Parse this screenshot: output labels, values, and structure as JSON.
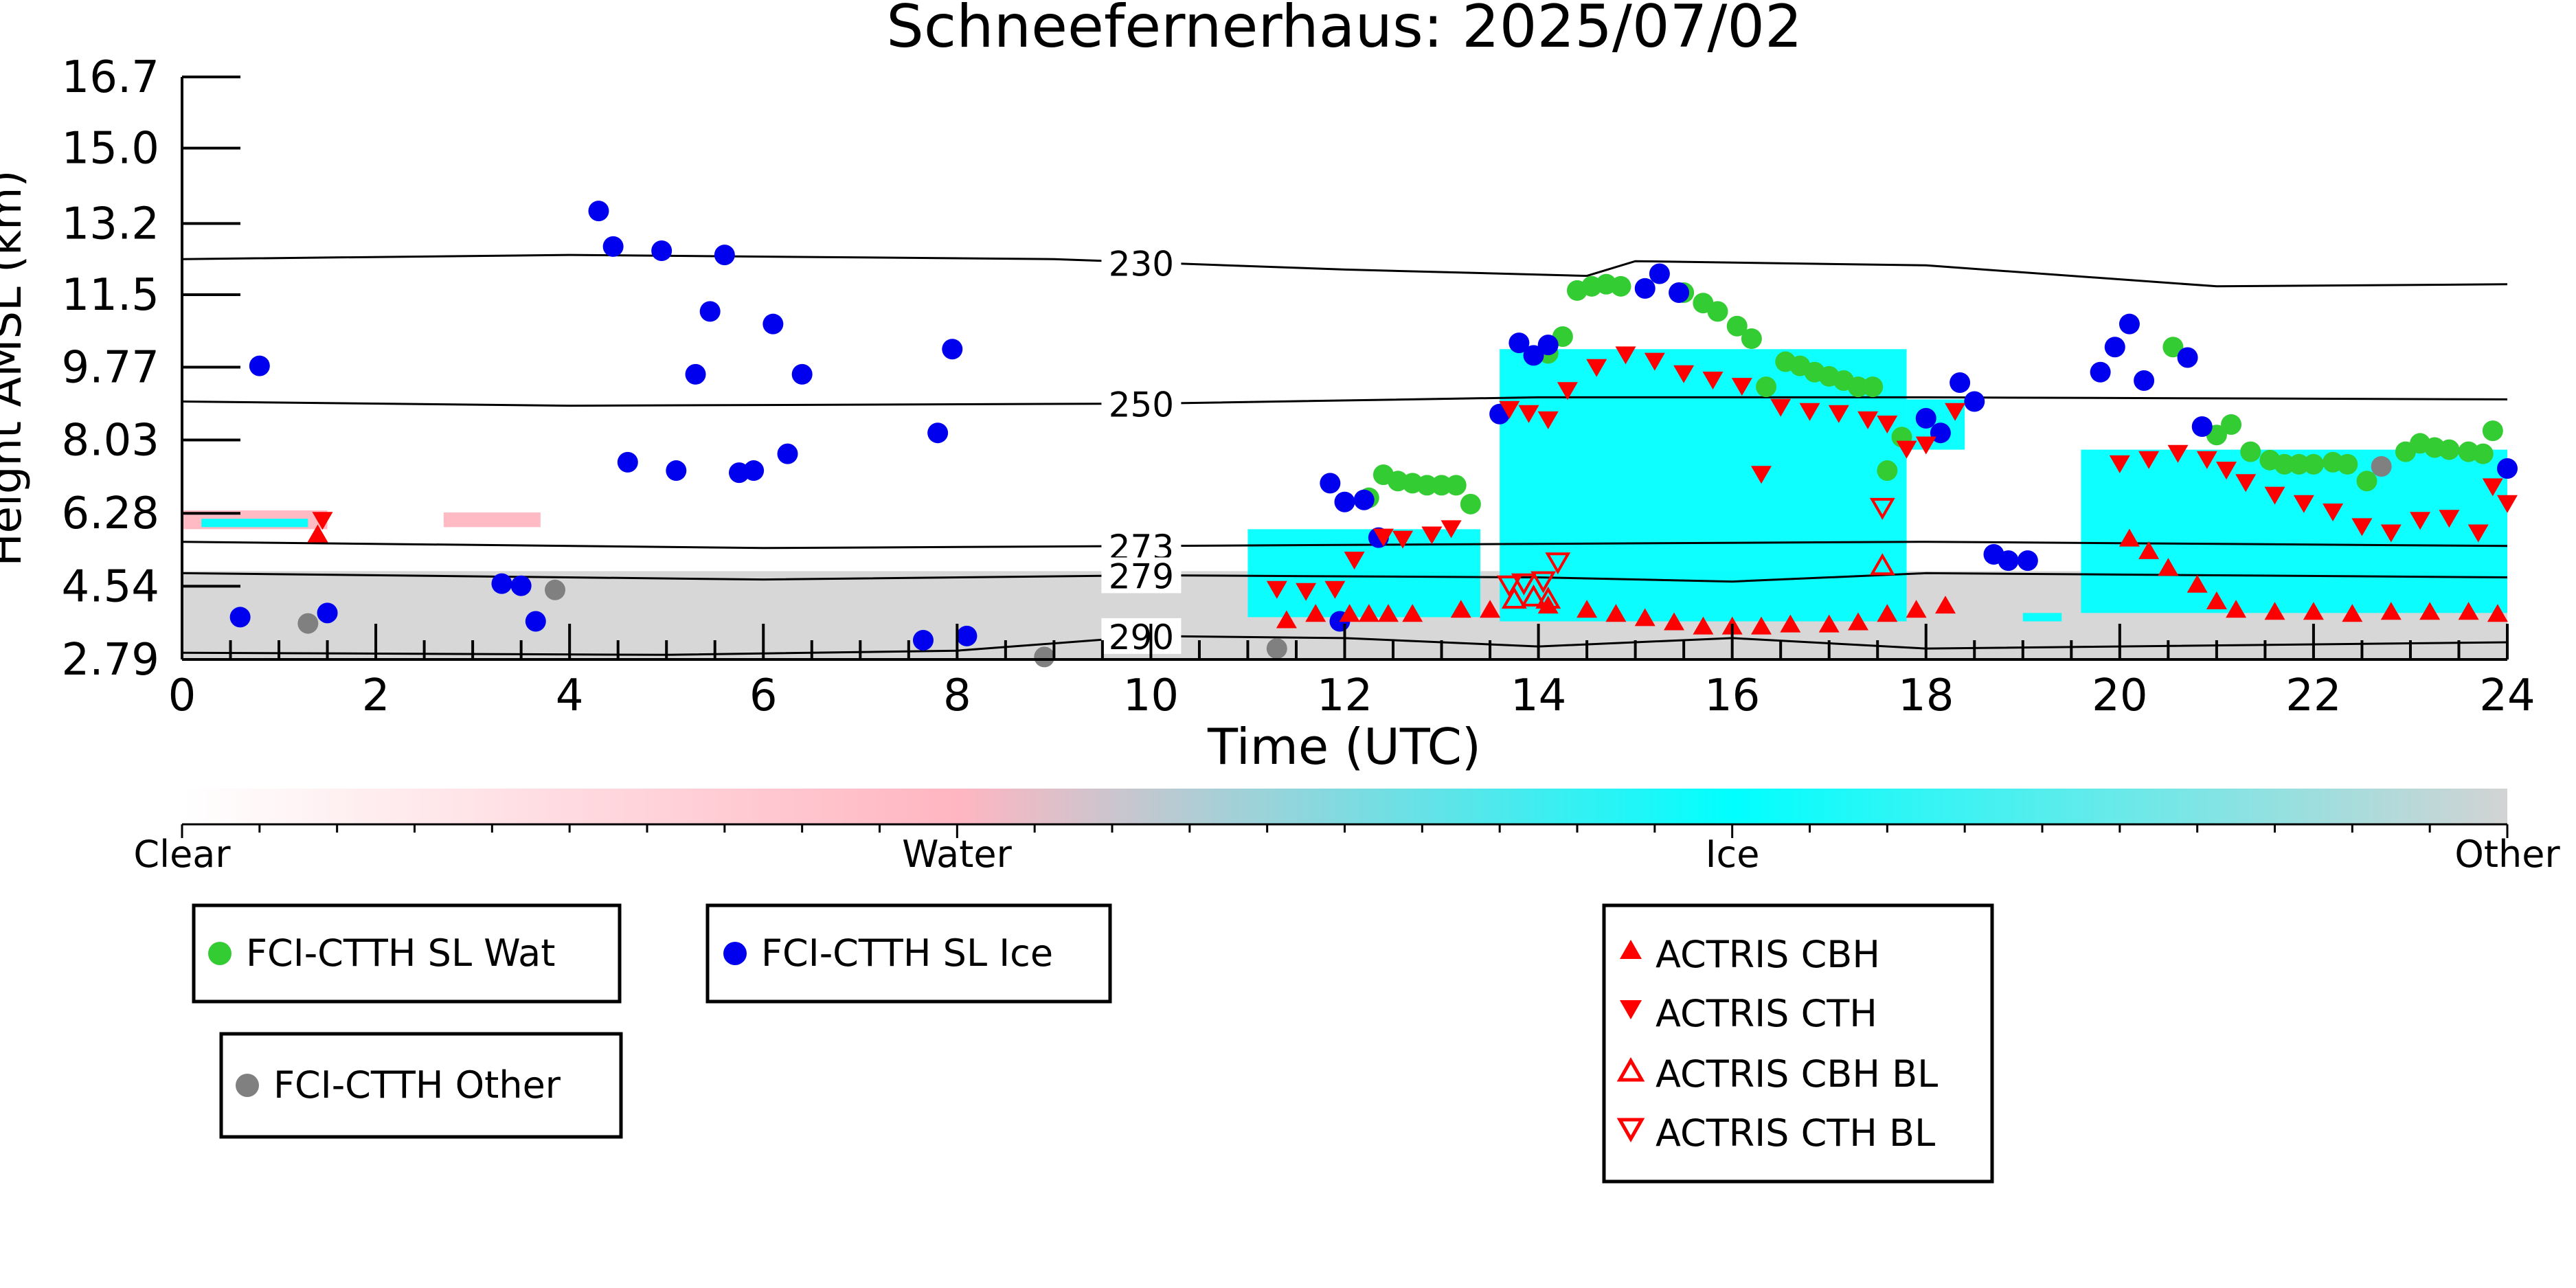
{
  "chart_data": {
    "type": "scatter",
    "title": "Schneefernerhaus: 2025/07/02",
    "xlabel": "Time (UTC)",
    "ylabel": "Height AMSL (km)",
    "xlim": [
      0,
      24
    ],
    "ylim": [
      2.79,
      16.7
    ],
    "x_ticks": [
      "0",
      "2",
      "4",
      "6",
      "8",
      "10",
      "12",
      "14",
      "16",
      "18",
      "20",
      "22",
      "24"
    ],
    "y_ticks": [
      "2.79",
      "4.54",
      "6.28",
      "8.03",
      "9.77",
      "11.5",
      "13.2",
      "15.0",
      "16.7"
    ],
    "colorbar": {
      "labels": [
        "Clear",
        "Water",
        "Ice",
        "Other"
      ],
      "colors": {
        "clear": "#ffffff",
        "water": "#ffb6c1",
        "ice": "#00ffff",
        "other": "#d3d3d3"
      }
    },
    "temperature_contours": [
      {
        "label": "230",
        "points": [
          [
            0,
            12.35
          ],
          [
            4,
            12.45
          ],
          [
            9,
            12.35
          ],
          [
            12,
            12.1
          ],
          [
            14.5,
            11.95
          ],
          [
            15,
            12.3
          ],
          [
            18,
            12.2
          ],
          [
            21,
            11.7
          ],
          [
            24,
            11.75
          ]
        ]
      },
      {
        "label": "250",
        "points": [
          [
            0,
            8.95
          ],
          [
            4,
            8.85
          ],
          [
            10,
            8.9
          ],
          [
            14,
            9.05
          ],
          [
            18,
            9.05
          ],
          [
            24,
            9.0
          ]
        ]
      },
      {
        "label": "273",
        "points": [
          [
            0,
            5.6
          ],
          [
            6,
            5.45
          ],
          [
            10,
            5.5
          ],
          [
            14,
            5.55
          ],
          [
            18,
            5.6
          ],
          [
            24,
            5.5
          ]
        ]
      },
      {
        "label": "279",
        "points": [
          [
            0,
            4.85
          ],
          [
            6,
            4.7
          ],
          [
            10,
            4.8
          ],
          [
            14,
            4.75
          ],
          [
            16,
            4.65
          ],
          [
            18,
            4.85
          ],
          [
            24,
            4.75
          ]
        ]
      },
      {
        "label": "290",
        "points": [
          [
            0,
            2.95
          ],
          [
            5,
            2.9
          ],
          [
            8,
            3.0
          ],
          [
            10,
            3.35
          ],
          [
            12,
            3.3
          ],
          [
            14,
            3.1
          ],
          [
            16,
            3.3
          ],
          [
            18,
            3.05
          ],
          [
            24,
            3.2
          ]
        ]
      }
    ],
    "series": [
      {
        "name": "FCI-CTTH SL Wat",
        "marker": "circle",
        "color": "#33cc33",
        "points": [
          [
            12.25,
            6.65
          ],
          [
            12.4,
            7.2
          ],
          [
            12.55,
            7.05
          ],
          [
            12.7,
            7.0
          ],
          [
            12.85,
            6.95
          ],
          [
            13.0,
            6.95
          ],
          [
            13.15,
            6.95
          ],
          [
            13.3,
            6.5
          ],
          [
            14.1,
            10.1
          ],
          [
            14.25,
            10.5
          ],
          [
            14.4,
            11.6
          ],
          [
            14.55,
            11.7
          ],
          [
            14.7,
            11.75
          ],
          [
            14.85,
            11.7
          ],
          [
            15.5,
            11.55
          ],
          [
            15.7,
            11.3
          ],
          [
            15.85,
            11.1
          ],
          [
            16.05,
            10.75
          ],
          [
            16.2,
            10.45
          ],
          [
            16.35,
            9.3
          ],
          [
            16.55,
            9.9
          ],
          [
            16.7,
            9.8
          ],
          [
            16.85,
            9.65
          ],
          [
            17.0,
            9.55
          ],
          [
            17.15,
            9.45
          ],
          [
            17.3,
            9.3
          ],
          [
            17.45,
            9.3
          ],
          [
            17.6,
            7.3
          ],
          [
            17.75,
            8.1
          ],
          [
            20.55,
            10.25
          ],
          [
            21.0,
            8.15
          ],
          [
            21.15,
            8.4
          ],
          [
            21.35,
            7.75
          ],
          [
            21.55,
            7.55
          ],
          [
            21.7,
            7.45
          ],
          [
            21.85,
            7.45
          ],
          [
            22.0,
            7.45
          ],
          [
            22.2,
            7.5
          ],
          [
            22.35,
            7.45
          ],
          [
            22.55,
            7.05
          ],
          [
            22.95,
            7.75
          ],
          [
            23.1,
            7.95
          ],
          [
            23.25,
            7.85
          ],
          [
            23.4,
            7.8
          ],
          [
            23.6,
            7.75
          ],
          [
            23.75,
            7.7
          ],
          [
            23.85,
            8.25
          ]
        ]
      },
      {
        "name": "FCI-CTTH SL Ice",
        "marker": "circle",
        "color": "#0000ee",
        "points": [
          [
            0.6,
            3.8
          ],
          [
            0.8,
            9.8
          ],
          [
            1.5,
            3.9
          ],
          [
            3.3,
            4.6
          ],
          [
            3.5,
            4.55
          ],
          [
            3.65,
            3.7
          ],
          [
            4.3,
            13.5
          ],
          [
            4.45,
            12.65
          ],
          [
            4.6,
            7.5
          ],
          [
            4.95,
            12.55
          ],
          [
            5.1,
            7.3
          ],
          [
            5.3,
            9.6
          ],
          [
            5.45,
            11.1
          ],
          [
            5.6,
            12.45
          ],
          [
            5.75,
            7.25
          ],
          [
            5.9,
            7.3
          ],
          [
            6.1,
            10.8
          ],
          [
            6.25,
            7.7
          ],
          [
            6.4,
            9.6
          ],
          [
            7.65,
            3.25
          ],
          [
            7.8,
            8.2
          ],
          [
            7.95,
            10.2
          ],
          [
            8.1,
            3.35
          ],
          [
            11.85,
            7.0
          ],
          [
            12.0,
            6.55
          ],
          [
            11.95,
            3.7
          ],
          [
            12.2,
            6.6
          ],
          [
            12.35,
            5.7
          ],
          [
            13.6,
            8.65
          ],
          [
            13.8,
            10.35
          ],
          [
            13.95,
            10.05
          ],
          [
            14.1,
            10.3
          ],
          [
            15.1,
            11.65
          ],
          [
            15.25,
            12.0
          ],
          [
            15.45,
            11.55
          ],
          [
            18.0,
            8.55
          ],
          [
            18.15,
            8.2
          ],
          [
            18.35,
            9.4
          ],
          [
            18.5,
            8.95
          ],
          [
            18.7,
            5.3
          ],
          [
            18.85,
            5.15
          ],
          [
            19.05,
            5.15
          ],
          [
            19.8,
            9.65
          ],
          [
            19.95,
            10.25
          ],
          [
            20.1,
            10.8
          ],
          [
            20.25,
            9.45
          ],
          [
            20.7,
            10.0
          ],
          [
            20.85,
            8.35
          ],
          [
            24.0,
            7.35
          ]
        ]
      },
      {
        "name": "FCI-CTTH Other",
        "marker": "circle",
        "color": "#808080",
        "points": [
          [
            1.3,
            3.65
          ],
          [
            3.85,
            4.45
          ],
          [
            8.9,
            2.85
          ],
          [
            11.3,
            3.05
          ],
          [
            22.7,
            7.4
          ]
        ]
      },
      {
        "name": "ACTRIS CBH",
        "marker": "triangle-up",
        "color": "#ff0000",
        "filled": true,
        "points": [
          [
            1.4,
            5.8
          ],
          [
            11.4,
            3.75
          ],
          [
            11.7,
            3.9
          ],
          [
            12.05,
            3.9
          ],
          [
            12.25,
            3.9
          ],
          [
            12.45,
            3.9
          ],
          [
            12.7,
            3.9
          ],
          [
            13.2,
            4.0
          ],
          [
            13.5,
            4.0
          ],
          [
            14.1,
            4.1
          ],
          [
            14.5,
            4.0
          ],
          [
            14.8,
            3.9
          ],
          [
            15.1,
            3.8
          ],
          [
            15.4,
            3.7
          ],
          [
            15.7,
            3.6
          ],
          [
            16.0,
            3.6
          ],
          [
            16.3,
            3.6
          ],
          [
            16.6,
            3.65
          ],
          [
            17.0,
            3.65
          ],
          [
            17.3,
            3.7
          ],
          [
            17.6,
            3.9
          ],
          [
            17.9,
            4.0
          ],
          [
            18.2,
            4.1
          ],
          [
            20.1,
            5.7
          ],
          [
            20.3,
            5.4
          ],
          [
            20.5,
            5.0
          ],
          [
            20.8,
            4.6
          ],
          [
            21.0,
            4.2
          ],
          [
            21.2,
            4.0
          ],
          [
            21.6,
            3.95
          ],
          [
            22.0,
            3.95
          ],
          [
            22.4,
            3.9
          ],
          [
            22.8,
            3.95
          ],
          [
            23.2,
            3.95
          ],
          [
            23.6,
            3.95
          ],
          [
            23.9,
            3.9
          ]
        ]
      },
      {
        "name": "ACTRIS CTH",
        "marker": "triangle-down",
        "color": "#ff0000",
        "filled": true,
        "points": [
          [
            1.45,
            6.1
          ],
          [
            11.3,
            4.45
          ],
          [
            11.6,
            4.4
          ],
          [
            11.9,
            4.45
          ],
          [
            12.1,
            5.15
          ],
          [
            12.4,
            5.7
          ],
          [
            12.6,
            5.65
          ],
          [
            12.9,
            5.75
          ],
          [
            13.1,
            5.9
          ],
          [
            13.7,
            8.75
          ],
          [
            13.9,
            8.65
          ],
          [
            14.1,
            8.5
          ],
          [
            14.3,
            9.2
          ],
          [
            14.6,
            9.75
          ],
          [
            14.9,
            10.05
          ],
          [
            15.2,
            9.9
          ],
          [
            15.5,
            9.6
          ],
          [
            15.8,
            9.45
          ],
          [
            16.1,
            9.3
          ],
          [
            16.3,
            7.2
          ],
          [
            16.5,
            8.8
          ],
          [
            16.8,
            8.7
          ],
          [
            17.1,
            8.65
          ],
          [
            17.4,
            8.5
          ],
          [
            17.6,
            8.4
          ],
          [
            17.8,
            7.8
          ],
          [
            18.0,
            7.9
          ],
          [
            18.3,
            8.7
          ],
          [
            20.0,
            7.45
          ],
          [
            20.3,
            7.55
          ],
          [
            20.6,
            7.7
          ],
          [
            20.9,
            7.55
          ],
          [
            21.1,
            7.3
          ],
          [
            21.3,
            7.0
          ],
          [
            21.6,
            6.7
          ],
          [
            21.9,
            6.5
          ],
          [
            22.2,
            6.3
          ],
          [
            22.5,
            5.95
          ],
          [
            22.8,
            5.8
          ],
          [
            23.1,
            6.1
          ],
          [
            23.4,
            6.15
          ],
          [
            23.7,
            5.8
          ],
          [
            23.85,
            6.9
          ],
          [
            24.0,
            6.5
          ]
        ]
      },
      {
        "name": "ACTRIS CBH BL",
        "marker": "triangle-up",
        "color": "#ff0000",
        "filled": false,
        "points": [
          [
            13.75,
            4.25
          ],
          [
            13.95,
            4.3
          ],
          [
            14.1,
            4.25
          ],
          [
            17.55,
            5.05
          ]
        ]
      },
      {
        "name": "ACTRIS CTH BL",
        "marker": "triangle-down",
        "color": "#ff0000",
        "filled": false,
        "points": [
          [
            13.7,
            4.55
          ],
          [
            13.85,
            4.6
          ],
          [
            14.05,
            4.65
          ],
          [
            14.2,
            5.1
          ],
          [
            17.55,
            6.4
          ]
        ]
      }
    ],
    "cloud_phase_regions": [
      {
        "phase": "other",
        "x": [
          0,
          24
        ],
        "y": [
          2.79,
          4.9
        ]
      },
      {
        "phase": "water",
        "x": [
          0,
          1.5
        ],
        "y": [
          5.9,
          6.35
        ]
      },
      {
        "phase": "ice",
        "x": [
          0.2,
          1.3
        ],
        "y": [
          5.95,
          6.15
        ]
      },
      {
        "phase": "water",
        "x": [
          2.7,
          3.7
        ],
        "y": [
          5.95,
          6.3
        ]
      },
      {
        "phase": "ice",
        "x": [
          11.0,
          13.4
        ],
        "y": [
          3.8,
          5.9
        ]
      },
      {
        "phase": "ice",
        "x": [
          13.6,
          17.8
        ],
        "y": [
          3.7,
          10.2
        ]
      },
      {
        "phase": "ice",
        "x": [
          17.8,
          18.4
        ],
        "y": [
          7.8,
          9.0
        ]
      },
      {
        "phase": "ice",
        "x": [
          19.6,
          24
        ],
        "y": [
          3.9,
          7.8
        ]
      },
      {
        "phase": "ice",
        "x": [
          19.0,
          19.4
        ],
        "y": [
          3.7,
          3.9
        ]
      }
    ],
    "legend_boxes": [
      {
        "entries": [
          "FCI-CTTH SL Wat"
        ]
      },
      {
        "entries": [
          "FCI-CTTH SL Ice"
        ]
      },
      {
        "entries": [
          "FCI-CTTH Other"
        ]
      },
      {
        "entries": [
          "ACTRIS CBH",
          "ACTRIS CTH",
          "ACTRIS CBH BL",
          "ACTRIS CTH BL"
        ]
      }
    ]
  }
}
